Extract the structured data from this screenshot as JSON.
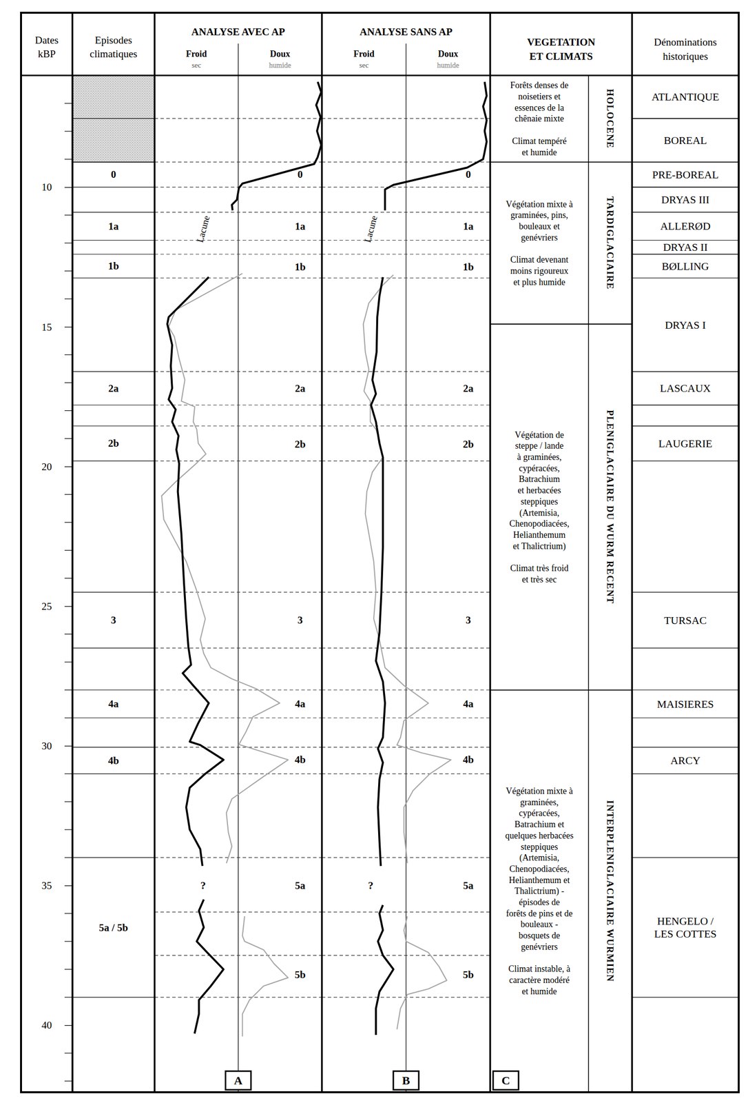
{
  "header": {
    "dates": [
      "Dates",
      "kBP"
    ],
    "episodes": [
      "Episodes",
      "climatiques"
    ]
  },
  "chart_data": {
    "type": "line",
    "ylim": [
      6,
      42.4
    ],
    "yticks": [
      10,
      15,
      20,
      25,
      30,
      35,
      40
    ],
    "minor_yticks": [
      7,
      8,
      9,
      11,
      12,
      13,
      14,
      16,
      17,
      18,
      19,
      21,
      22,
      23,
      24,
      26,
      27,
      28,
      29,
      31,
      32,
      33,
      34,
      36,
      37,
      38,
      39,
      41,
      42
    ],
    "xlim": [
      0,
      100
    ],
    "tick_labels": "y",
    "boundaries": [
      7.54,
      9.1,
      10.0,
      10.9,
      11.9,
      12.4,
      13.25,
      16.6,
      17.8,
      18.55,
      19.8,
      24.5,
      26.5,
      28.0,
      29.0,
      30.05,
      31.0,
      34.0,
      35.95,
      37.5,
      39.0
    ],
    "episode_labels": [
      {
        "label": "0",
        "date": 9.55
      },
      {
        "label": "1a",
        "date": 11.4
      },
      {
        "label": "1b",
        "date": 12.85
      },
      {
        "label": "2a",
        "date": 17.2
      },
      {
        "label": "2b",
        "date": 19.2
      },
      {
        "label": "3",
        "date": 25.5
      },
      {
        "label": "4a",
        "date": 28.5
      },
      {
        "label": "4b",
        "date": 30.5
      },
      {
        "label": "5a",
        "date": 35.0
      },
      {
        "label": "5b",
        "date": 38.2
      }
    ],
    "panels": [
      {
        "title": "ANALYSE AVEC AP",
        "letter": "A",
        "gap_label": "Lacune",
        "unknown_label": "?",
        "series": [
          {
            "name": "Froid",
            "sub": "sec",
            "color": "#000000",
            "dates": [
              6.23,
              6.6,
              7.06,
              7.49,
              7.99,
              8.49,
              8.92,
              9.17,
              9.87,
              10.03,
              10.45,
              10.63,
              10.83,
              11.5,
              13.22,
              14.65,
              14.9,
              15.65,
              16.4,
              17.2,
              17.6,
              17.96,
              18.4,
              18.9,
              19.4,
              19.9,
              20.9,
              22.4,
              24.2,
              25.45,
              26.46,
              27.1,
              27.4,
              27.84,
              28.47,
              29.2,
              29.85,
              29.97,
              30.5,
              31.0,
              31.5,
              32.2,
              33.0,
              33.7,
              34.3,
              35.0,
              35.5,
              35.9,
              36.5,
              37.0,
              37.4,
              38.0,
              38.6,
              39.1,
              39.6,
              40.3
            ],
            "values": [
              97.5,
              99.6,
              96.6,
              99.2,
              97.1,
              99.6,
              97.5,
              95.4,
              52.5,
              50.4,
              49.2,
              46.2,
              46.6,
              null,
              32.4,
              8.4,
              7.6,
              10.5,
              9.7,
              10.5,
              8.4,
              12.6,
              10.5,
              14.3,
              13.0,
              14.7,
              13.9,
              16.0,
              17.6,
              18.9,
              20.2,
              21.8,
              16.8,
              23.1,
              32.4,
              26.0,
              21.0,
              27.3,
              41.2,
              30.3,
              21.0,
              18.9,
              21.0,
              27.3,
              28.6,
              null,
              29.4,
              26.5,
              29.4,
              25.2,
              31.5,
              41.2,
              33.6,
              26.5,
              26.5,
              23.9
            ]
          },
          {
            "name": "Doux",
            "sub": "humide",
            "color": "#a6a6a6",
            "dates": [
              13.09,
              14.4,
              15.0,
              15.35,
              16.15,
              16.9,
              17.66,
              17.86,
              18.4,
              18.67,
              19.17,
              19.55,
              19.92,
              20.55,
              21.05,
              21.9,
              22.7,
              23.4,
              24.45,
              25.45,
              26.2,
              26.7,
              27.2,
              27.6,
              27.96,
              28.47,
              28.96,
              29.5,
              29.95,
              30.5,
              31.1,
              31.9,
              32.4,
              33.1,
              33.6,
              34.0,
              34.2,
              35.0,
              36.1,
              36.8,
              37.0,
              37.3,
              37.8,
              38.3,
              38.6,
              39.1,
              39.6,
              40.4
            ],
            "values": [
              52.5,
              12.6,
              8.4,
              11.8,
              14.7,
              18.1,
              16.0,
              24.0,
              23.1,
              25.2,
              26.1,
              30.7,
              24.4,
              12.6,
              4.2,
              5.5,
              12.6,
              18.9,
              25.2,
              30.3,
              27.3,
              29.4,
              33.6,
              46.2,
              60.9,
              74.8,
              58.8,
              54.6,
              50.4,
              79.8,
              65.1,
              46.2,
              42.9,
              44.1,
              46.2,
              44.1,
              42.9,
              null,
              53.8,
              52.5,
              53.8,
              65.1,
              71.4,
              79.8,
              65.1,
              56.7,
              52.5,
              52.5
            ]
          }
        ]
      },
      {
        "title": "ANALYSE SANS AP",
        "letter": "B",
        "gap_label": "Lacune",
        "unknown_label": "?",
        "series": [
          {
            "name": "Froid",
            "sub": "sec",
            "color": "#000000",
            "dates": [
              6.23,
              6.73,
              7.11,
              7.61,
              7.99,
              8.37,
              8.74,
              9.0,
              9.3,
              9.92,
              10.08,
              10.83,
              11.5,
              13.22,
              13.9,
              14.65,
              15.9,
              16.9,
              17.4,
              17.8,
              18.4,
              19.17,
              19.67,
              20.9,
              22.9,
              24.45,
              25.95,
              26.96,
              27.7,
              28.47,
              29.7,
              30.1,
              30.6,
              31.2,
              32.2,
              33.4,
              34.3,
              35.0,
              35.7,
              36.0,
              36.6,
              37.0,
              37.5,
              38.0,
              38.8,
              39.4,
              40.35
            ],
            "values": [
              96.7,
              97.9,
              95.8,
              97.9,
              96.7,
              97.9,
              96.7,
              95.8,
              86.3,
              42.5,
              37.5,
              37.5,
              null,
              36.25,
              34.2,
              32.9,
              32.5,
              30.0,
              32.1,
              29.2,
              32.1,
              34.2,
              36.25,
              36.25,
              36.25,
              35.4,
              34.2,
              32.1,
              36.25,
              37.5,
              36.25,
              33.3,
              36.25,
              34.2,
              33.3,
              34.2,
              35.0,
              null,
              36.25,
              34.2,
              36.25,
              33.3,
              36.25,
              42.5,
              34.2,
              32.1,
              32.1
            ]
          },
          {
            "name": "Doux",
            "sub": "humide",
            "color": "#a6a6a6",
            "dates": [
              13.14,
              13.5,
              14.15,
              14.9,
              15.9,
              16.53,
              17.3,
              17.66,
              18.4,
              18.67,
              19.05,
              19.67,
              20.2,
              20.9,
              21.7,
              22.4,
              23.4,
              24.45,
              25.45,
              26.2,
              27.2,
              27.84,
              28.47,
              29.1,
              29.7,
              29.97,
              30.25,
              30.5,
              31.0,
              31.6,
              32.2,
              33.1,
              33.74,
              34.2,
              35.0,
              36.1,
              36.6,
              37.0,
              37.4,
              37.9,
              38.4,
              38.7,
              38.9,
              39.4,
              40.15
            ],
            "values": [
              42.5,
              36.25,
              27.9,
              24.6,
              25.8,
              27.9,
              25.0,
              28.75,
              28.75,
              32.1,
              34.2,
              36.25,
              30.0,
              26.7,
              25.8,
              27.9,
              30.8,
              32.1,
              30.8,
              34.2,
              37.5,
              48.75,
              63.3,
              48.75,
              46.7,
              44.6,
              59.2,
              76.7,
              64.2,
              54.2,
              48.75,
              48.75,
              50.0,
              50.8,
              null,
              50.8,
              48.75,
              50.0,
              63.3,
              69.6,
              74.2,
              63.3,
              50.8,
              46.7,
              44.6
            ]
          }
        ]
      }
    ]
  },
  "episodes": {
    "shaded": [
      [
        6,
        7.54
      ],
      [
        7.54,
        9.1
      ]
    ],
    "items": [
      {
        "label": "0",
        "start": 9.1,
        "end": 10.0
      },
      {
        "label": "1a",
        "start": 10.9,
        "end": 11.9
      },
      {
        "label": "1b",
        "start": 12.4,
        "end": 13.25
      },
      {
        "label": "2a",
        "start": 16.6,
        "end": 17.8
      },
      {
        "label": "2b",
        "start": 18.55,
        "end": 19.8
      },
      {
        "label": "3",
        "start": 24.5,
        "end": 26.5
      },
      {
        "label": "4a",
        "start": 28.0,
        "end": 29.0
      },
      {
        "label": "4b",
        "start": 30.05,
        "end": 31.0
      },
      {
        "label": "5a / 5b",
        "start": 34.0,
        "end": 39.0
      }
    ]
  },
  "vegetation": {
    "title": [
      "VEGETATION",
      "ET CLIMATS"
    ],
    "letter": "C",
    "periods": [
      {
        "name": "HOLOCENE",
        "start": 6,
        "end": 9.1,
        "paragraphs": [
          [
            "Forêts denses de",
            "noisetiers et",
            "essences de la",
            "chênaie mixte"
          ],
          [
            "Climat tempéré",
            "et humide"
          ]
        ]
      },
      {
        "name": "TARDIGLACIAIRE",
        "start": 9.1,
        "end": 14.9,
        "paragraphs": [
          [
            "Végétation mixte à",
            "graminées, pins,",
            "bouleaux et",
            "genévriers"
          ],
          [
            "Climat devenant",
            "moins rigoureux",
            "et plus humide"
          ]
        ]
      },
      {
        "name": "PLENIGLACIAIRE DU WURM RECENT",
        "start": 14.9,
        "end": 28.0,
        "paragraphs": [
          [
            "Végétation de",
            "steppe / lande",
            "à graminées,",
            "cypéracées,",
            "Batrachium",
            "et herbacées",
            "steppiques",
            "(Artemisia,",
            "Chenopodiacées,",
            "Helianthemum",
            "et Thalictrium)"
          ],
          [
            "Climat très froid",
            "et très sec"
          ]
        ]
      },
      {
        "name": "INTERPLENIGLACIAIRE WURMIEN",
        "start": 28.0,
        "end": 42.4,
        "paragraphs": [
          [
            "Végétation mixte à",
            "graminées,",
            "cypéracées,",
            "Batrachium et",
            "quelques herbacées",
            "steppiques",
            "(Artemisia,",
            "Chenopodiacées,",
            "Helianthemum et",
            "Thalictrium) -",
            "épisodes de",
            "forêts de pins et de",
            "bouleaux -",
            "bosquets de",
            "genévriers"
          ],
          [
            "Climat instable, à",
            "caractère modéré",
            "et humide"
          ]
        ]
      }
    ]
  },
  "denominations": {
    "title": [
      "Dénominations",
      "historiques"
    ],
    "items": [
      {
        "lines": [
          "ATLANTIQUE"
        ],
        "start": 6,
        "end": 7.54
      },
      {
        "lines": [
          "BOREAL"
        ],
        "start": 7.54,
        "end": 9.1
      },
      {
        "lines": [
          "PRE-BOREAL"
        ],
        "start": 9.1,
        "end": 10.0
      },
      {
        "lines": [
          "DRYAS III"
        ],
        "start": 10.0,
        "end": 10.9
      },
      {
        "lines": [
          "ALLERØD"
        ],
        "start": 10.9,
        "end": 11.9
      },
      {
        "lines": [
          "DRYAS II"
        ],
        "start": 11.9,
        "end": 12.4
      },
      {
        "lines": [
          "BØLLING"
        ],
        "start": 12.4,
        "end": 13.25
      },
      {
        "lines": [
          "DRYAS I"
        ],
        "start": 13.25,
        "end": 16.6
      },
      {
        "lines": [
          "LASCAUX"
        ],
        "start": 16.6,
        "end": 17.8
      },
      {
        "start": 17.8,
        "end": 18.55
      },
      {
        "lines": [
          "LAUGERIE"
        ],
        "start": 18.55,
        "end": 19.8
      },
      {
        "lines": [
          "TURSAC"
        ],
        "start": 24.5,
        "end": 26.5
      },
      {
        "lines": [
          "MAISIERES"
        ],
        "start": 28.0,
        "end": 29.0
      },
      {
        "lines": [
          "ARCY"
        ],
        "start": 30.05,
        "end": 31.0
      },
      {
        "lines": [
          "HENGELO /",
          "LES COTTES"
        ],
        "start": 34.0,
        "end": 39.0
      }
    ]
  }
}
